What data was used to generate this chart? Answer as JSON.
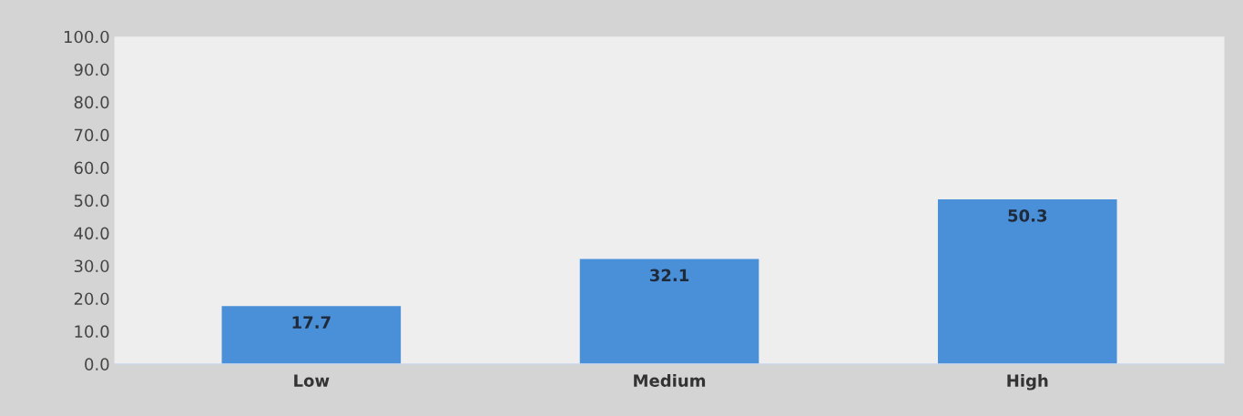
{
  "chart_data": {
    "type": "bar",
    "categories": [
      "Low",
      "Medium",
      "High"
    ],
    "values": [
      17.7,
      32.1,
      50.3
    ],
    "color": "#4a90d9",
    "ylim": [
      0,
      100
    ],
    "yticks": [
      {
        "value": 0,
        "label": "0.0"
      },
      {
        "value": 10,
        "label": "10.0"
      },
      {
        "value": 20,
        "label": "20.0"
      },
      {
        "value": 30,
        "label": "30.0"
      },
      {
        "value": 40,
        "label": "40.0"
      },
      {
        "value": 50,
        "label": "50.0"
      },
      {
        "value": 60,
        "label": "60.0"
      },
      {
        "value": 70,
        "label": "70.0"
      },
      {
        "value": 80,
        "label": "80.0"
      },
      {
        "value": 90,
        "label": "90.0"
      },
      {
        "value": 100,
        "label": "100.0"
      }
    ],
    "data_labels": true,
    "grid": false
  }
}
